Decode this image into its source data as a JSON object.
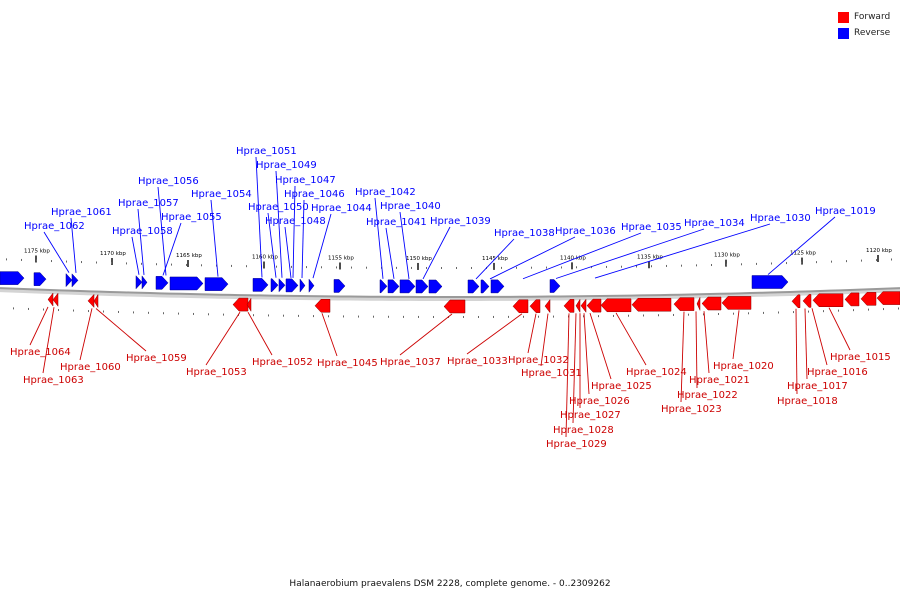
{
  "legend": [
    {
      "label": "Forward",
      "color": "#ff0000"
    },
    {
      "label": "Reverse",
      "color": "#0000ff"
    }
  ],
  "caption": "Halanaerobium praevalens DSM 2228, complete genome. - 0..2309262",
  "colors": {
    "forward": "#ff0000",
    "reverse": "#0000ff",
    "backbone": "#9a9a9a"
  },
  "ticks": [
    {
      "kbp": 1175,
      "label": "1175 kbp"
    },
    {
      "kbp": 1170,
      "label": "1170 kbp"
    },
    {
      "kbp": 1165,
      "label": "1165 kbp"
    },
    {
      "kbp": 1160,
      "label": "1160 kbp"
    },
    {
      "kbp": 1155,
      "label": "1155 kbp"
    },
    {
      "kbp": 1150,
      "label": "1150 kbp"
    },
    {
      "kbp": 1145,
      "label": "1145 kbp"
    },
    {
      "kbp": 1140,
      "label": "1140 kbp"
    },
    {
      "kbp": 1135,
      "label": "1135 kbp"
    },
    {
      "kbp": 1130,
      "label": "1130 kbp"
    },
    {
      "kbp": 1125,
      "label": "1125 kbp"
    },
    {
      "kbp": 1120,
      "label": "1120 kbp"
    }
  ],
  "reverse_labels": [
    "Hprae_1062",
    "Hprae_1061",
    "Hprae_1058",
    "Hprae_1057",
    "Hprae_1056",
    "Hprae_1055",
    "Hprae_1054",
    "Hprae_1051",
    "Hprae_1050",
    "Hprae_1049",
    "Hprae_1048",
    "Hprae_1047",
    "Hprae_1046",
    "Hprae_1044",
    "Hprae_1042",
    "Hprae_1041",
    "Hprae_1040",
    "Hprae_1039",
    "Hprae_1038",
    "Hprae_1036",
    "Hprae_1035",
    "Hprae_1034",
    "Hprae_1030",
    "Hprae_1019"
  ],
  "forward_labels": [
    "Hprae_1064",
    "Hprae_1063",
    "Hprae_1060",
    "Hprae_1059",
    "Hprae_1053",
    "Hprae_1052",
    "Hprae_1045",
    "Hprae_1037",
    "Hprae_1033",
    "Hprae_1032",
    "Hprae_1031",
    "Hprae_1029",
    "Hprae_1028",
    "Hprae_1027",
    "Hprae_1026",
    "Hprae_1025",
    "Hprae_1024",
    "Hprae_1023",
    "Hprae_1022",
    "Hprae_1021",
    "Hprae_1020",
    "Hprae_1018",
    "Hprae_1017",
    "Hprae_1016",
    "Hprae_1015"
  ]
}
